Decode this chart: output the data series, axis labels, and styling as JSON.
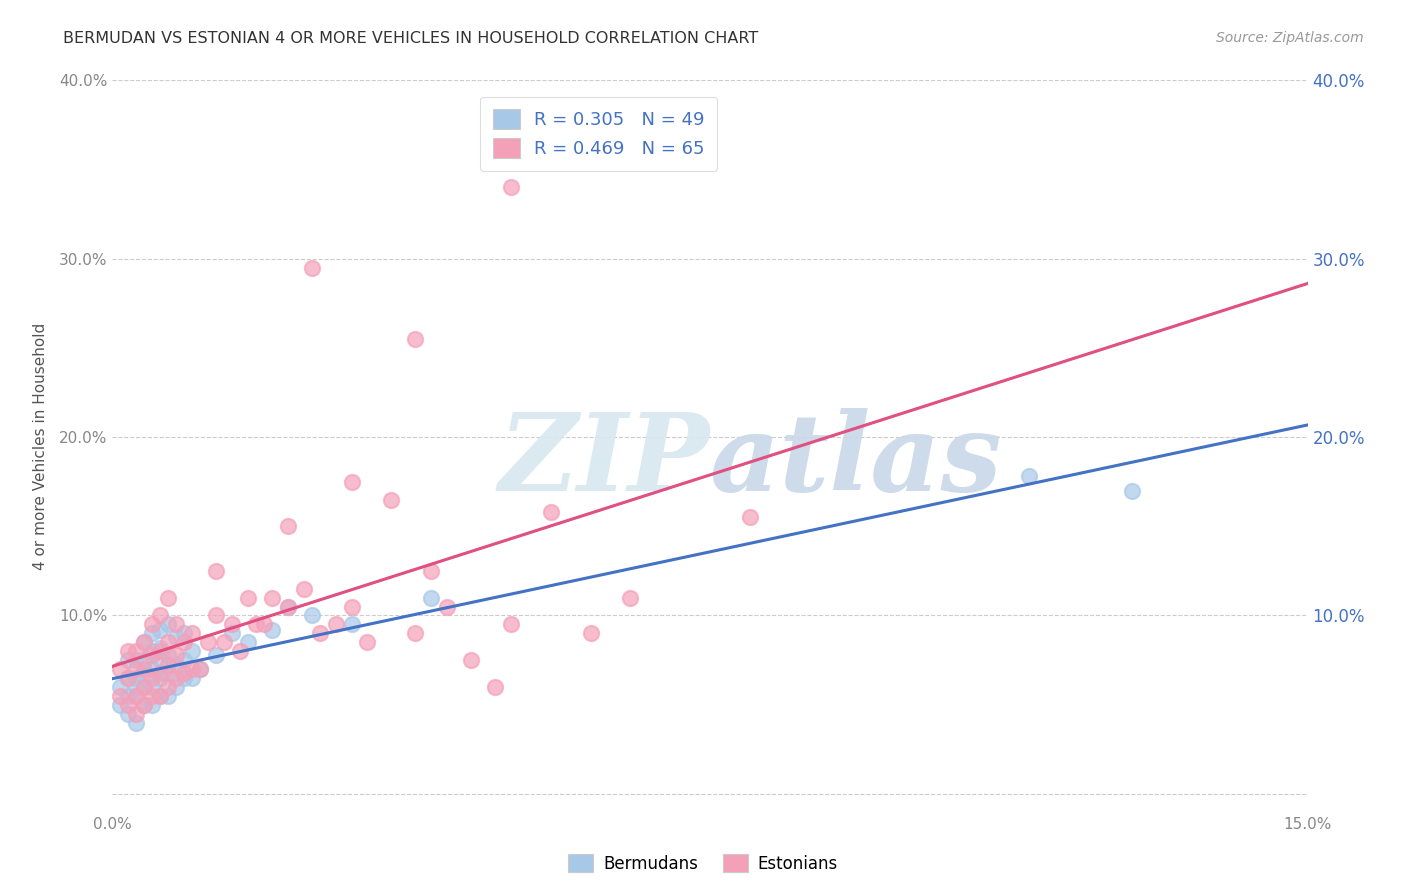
{
  "title": "BERMUDAN VS ESTONIAN 4 OR MORE VEHICLES IN HOUSEHOLD CORRELATION CHART",
  "source": "Source: ZipAtlas.com",
  "ylabel": "4 or more Vehicles in Household",
  "xmin": 0.0,
  "xmax": 0.15,
  "ymin": -0.01,
  "ymax": 0.4,
  "xticks": [
    0.0,
    0.03,
    0.06,
    0.09,
    0.12,
    0.15
  ],
  "xtick_labels": [
    "0.0%",
    "",
    "",
    "",
    "",
    "15.0%"
  ],
  "yticks": [
    0.0,
    0.1,
    0.2,
    0.3,
    0.4
  ],
  "ytick_labels_left": [
    "",
    "10.0%",
    "20.0%",
    "30.0%",
    "40.0%"
  ],
  "ytick_labels_right": [
    "",
    "10.0%",
    "20.0%",
    "30.0%",
    "40.0%"
  ],
  "bermudans_color": "#a8c8e8",
  "estonians_color": "#f4a0b8",
  "bermudans_line_color": "#4472c4",
  "estonians_line_color": "#e05080",
  "legend_r_bermudans": "R = 0.305",
  "legend_n_bermudans": "N = 49",
  "legend_r_estonians": "R = 0.469",
  "legend_n_estonians": "N = 65",
  "background_color": "#ffffff",
  "grid_color": "#cccccc",
  "bermudans_x": [
    0.001,
    0.001,
    0.002,
    0.002,
    0.002,
    0.002,
    0.003,
    0.003,
    0.003,
    0.003,
    0.003,
    0.004,
    0.004,
    0.004,
    0.004,
    0.004,
    0.005,
    0.005,
    0.005,
    0.005,
    0.005,
    0.006,
    0.006,
    0.006,
    0.006,
    0.006,
    0.007,
    0.007,
    0.007,
    0.007,
    0.008,
    0.008,
    0.008,
    0.009,
    0.009,
    0.009,
    0.01,
    0.01,
    0.011,
    0.013,
    0.015,
    0.017,
    0.02,
    0.022,
    0.025,
    0.03,
    0.04,
    0.115,
    0.128
  ],
  "bermudans_y": [
    0.05,
    0.06,
    0.045,
    0.055,
    0.065,
    0.075,
    0.04,
    0.055,
    0.06,
    0.065,
    0.075,
    0.05,
    0.06,
    0.068,
    0.075,
    0.085,
    0.05,
    0.06,
    0.07,
    0.08,
    0.09,
    0.055,
    0.065,
    0.075,
    0.082,
    0.092,
    0.055,
    0.068,
    0.078,
    0.095,
    0.06,
    0.072,
    0.088,
    0.065,
    0.075,
    0.09,
    0.065,
    0.08,
    0.07,
    0.078,
    0.09,
    0.085,
    0.092,
    0.105,
    0.1,
    0.095,
    0.11,
    0.178,
    0.17
  ],
  "estonians_x": [
    0.001,
    0.001,
    0.002,
    0.002,
    0.002,
    0.003,
    0.003,
    0.003,
    0.003,
    0.004,
    0.004,
    0.004,
    0.004,
    0.005,
    0.005,
    0.005,
    0.005,
    0.006,
    0.006,
    0.006,
    0.006,
    0.007,
    0.007,
    0.007,
    0.007,
    0.008,
    0.008,
    0.008,
    0.009,
    0.009,
    0.01,
    0.01,
    0.011,
    0.012,
    0.013,
    0.013,
    0.014,
    0.015,
    0.016,
    0.017,
    0.018,
    0.019,
    0.02,
    0.022,
    0.024,
    0.026,
    0.028,
    0.03,
    0.032,
    0.035,
    0.038,
    0.04,
    0.042,
    0.045,
    0.048,
    0.05,
    0.055,
    0.06,
    0.065,
    0.038,
    0.03,
    0.025,
    0.022,
    0.08,
    0.05
  ],
  "estonians_y": [
    0.055,
    0.07,
    0.05,
    0.065,
    0.08,
    0.045,
    0.055,
    0.07,
    0.08,
    0.05,
    0.06,
    0.07,
    0.085,
    0.055,
    0.065,
    0.078,
    0.095,
    0.055,
    0.068,
    0.08,
    0.1,
    0.06,
    0.072,
    0.085,
    0.11,
    0.065,
    0.078,
    0.095,
    0.068,
    0.085,
    0.07,
    0.09,
    0.07,
    0.085,
    0.1,
    0.125,
    0.085,
    0.095,
    0.08,
    0.11,
    0.095,
    0.095,
    0.11,
    0.105,
    0.115,
    0.09,
    0.095,
    0.105,
    0.085,
    0.165,
    0.09,
    0.125,
    0.105,
    0.075,
    0.06,
    0.095,
    0.158,
    0.09,
    0.11,
    0.255,
    0.175,
    0.295,
    0.15,
    0.155,
    0.34
  ]
}
